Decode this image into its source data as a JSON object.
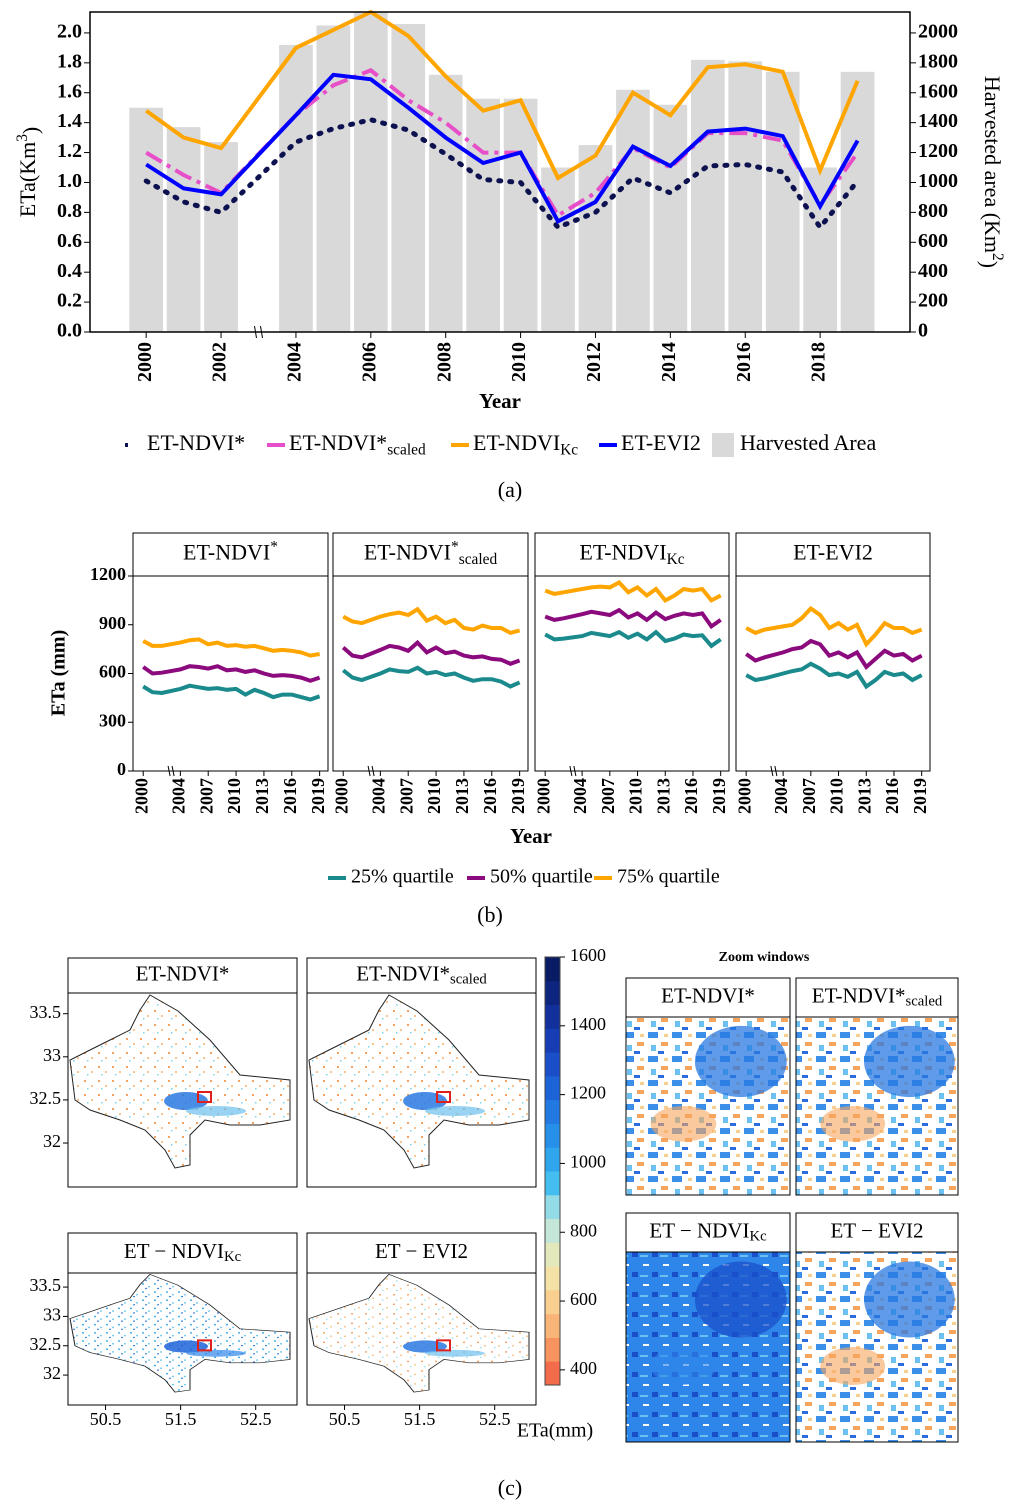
{
  "chart_data": [
    {
      "type": "bar-line",
      "x": [
        2000,
        2001,
        2002,
        2004,
        2005,
        2006,
        2007,
        2008,
        2009,
        2010,
        2011,
        2012,
        2013,
        2014,
        2015,
        2016,
        2017,
        2018,
        2019
      ],
      "xlim": [
        1998.5,
        2020.4
      ],
      "xticks": [
        2000,
        2002,
        2004,
        2006,
        2008,
        2010,
        2012,
        2014,
        2016,
        2018
      ],
      "axis_break_at": 2003,
      "xlabel": "Year",
      "ylabel": "ETa(Km",
      "ylabel_sup": "3",
      "ylabel_end": ")",
      "ylim": [
        0,
        2.14
      ],
      "yticks": [
        {
          "value": 0,
          "label": "0.0"
        },
        {
          "value": 0.2,
          "label": "0.2"
        },
        {
          "value": 0.4,
          "label": "0.4"
        },
        {
          "value": 0.6,
          "label": "0.6"
        },
        {
          "value": 0.8,
          "label": "0.8"
        },
        {
          "value": 1,
          "label": "1.0"
        },
        {
          "value": 1.2,
          "label": "1.2"
        },
        {
          "value": 1.4,
          "label": "1.4"
        },
        {
          "value": 1.6,
          "label": "1.6"
        },
        {
          "value": 1.8,
          "label": "1.8"
        },
        {
          "value": 2,
          "label": "2.0"
        }
      ],
      "y2label": "Harvested area (Km",
      "y2label_sup": "2",
      "y2label_end": ")",
      "y2lim": [
        0,
        2140
      ],
      "y2ticks": [
        0,
        200,
        400,
        600,
        800,
        1000,
        1200,
        1400,
        1600,
        1800,
        2000
      ],
      "legend": "bottom",
      "series": [
        {
          "name": "ET-NDVI*",
          "color": "#0d1150",
          "style": "dotted",
          "values": [
            1.01,
            0.87,
            0.8,
            1.27,
            1.36,
            1.42,
            1.35,
            1.19,
            1.02,
            1.0,
            0.7,
            0.8,
            1.03,
            0.93,
            1.11,
            1.12,
            1.07,
            0.7,
            1.01
          ]
        },
        {
          "name": "ET-NDVI*",
          "name_sub": "scaled",
          "color": "#e64fc8",
          "style": "dashdot",
          "values": [
            1.2,
            1.05,
            0.93,
            1.45,
            1.65,
            1.75,
            1.55,
            1.4,
            1.2,
            1.2,
            0.78,
            0.93,
            1.23,
            1.1,
            1.33,
            1.33,
            1.28,
            0.85,
            1.2
          ]
        },
        {
          "name": "ET-NDVI",
          "name_sub": "Kc",
          "color": "#ffa500",
          "style": "solid",
          "values": [
            1.48,
            1.3,
            1.23,
            1.9,
            2.02,
            2.14,
            1.98,
            1.71,
            1.48,
            1.55,
            1.03,
            1.18,
            1.6,
            1.45,
            1.77,
            1.79,
            1.74,
            1.08,
            1.68
          ]
        },
        {
          "name": "ET-EVI2",
          "color": "#0000ff",
          "style": "solid",
          "values": [
            1.12,
            0.96,
            0.92,
            1.45,
            1.72,
            1.69,
            1.5,
            1.3,
            1.13,
            1.2,
            0.74,
            0.87,
            1.24,
            1.11,
            1.34,
            1.36,
            1.31,
            0.84,
            1.28
          ]
        },
        {
          "name": "Harvested Area",
          "color": "#d9d9d9",
          "type": "bar",
          "axis": "y2",
          "values": [
            1500,
            1370,
            1270,
            1920,
            2050,
            2140,
            2060,
            1720,
            1560,
            1560,
            1100,
            1250,
            1620,
            1520,
            1820,
            1810,
            1740,
            1100,
            1740
          ]
        }
      ],
      "caption": "(a)"
    },
    {
      "type": "facet-line",
      "x": [
        2000,
        2001,
        2002,
        2004,
        2005,
        2006,
        2007,
        2008,
        2009,
        2010,
        2011,
        2012,
        2013,
        2014,
        2015,
        2016,
        2017,
        2018,
        2019
      ],
      "xlim": [
        1998.9,
        2019.9
      ],
      "xticks": [
        2000,
        2004,
        2007,
        2010,
        2013,
        2016,
        2019
      ],
      "axis_break_at": 2003,
      "xlabel": "Year",
      "ylabel": "ETa (mm)",
      "ylim": [
        0,
        1200
      ],
      "yticks": [
        0,
        300,
        600,
        900,
        1200
      ],
      "legend": "bottom",
      "series": [
        {
          "name": "25% quartile",
          "color": "#1b8a8c"
        },
        {
          "name": "50% quartile",
          "color": "#8b0a7d"
        },
        {
          "name": "75% quartile",
          "color": "#ffa500"
        }
      ],
      "facets": [
        {
          "title": "ET-NDVI",
          "title_sup": "*",
          "values": [
            [
              520,
              485,
              480,
              505,
              525,
              515,
              505,
              510,
              500,
              505,
              470,
              500,
              480,
              455,
              470,
              470,
              455,
              440,
              460
            ],
            [
              640,
              600,
              605,
              625,
              645,
              640,
              630,
              645,
              620,
              625,
              610,
              620,
              600,
              585,
              590,
              585,
              575,
              555,
              575
            ],
            [
              800,
              770,
              770,
              790,
              805,
              810,
              780,
              790,
              770,
              775,
              765,
              770,
              755,
              740,
              745,
              740,
              730,
              710,
              720
            ]
          ]
        },
        {
          "title": "ET-NDVI",
          "title_sup": "*",
          "title_sub": "scaled",
          "values": [
            [
              620,
              575,
              560,
              600,
              625,
              615,
              610,
              635,
              600,
              610,
              590,
              600,
              575,
              555,
              565,
              565,
              550,
              520,
              545
            ],
            [
              760,
              710,
              700,
              745,
              770,
              760,
              740,
              790,
              730,
              760,
              725,
              735,
              710,
              700,
              705,
              690,
              685,
              660,
              680
            ],
            [
              950,
              920,
              910,
              950,
              965,
              975,
              960,
              995,
              925,
              950,
              910,
              930,
              880,
              870,
              895,
              880,
              880,
              850,
              865
            ]
          ]
        },
        {
          "title": "ET-NDVI",
          "title_sub": "Kc",
          "values": [
            [
              840,
              810,
              815,
              830,
              850,
              840,
              830,
              855,
              820,
              845,
              810,
              855,
              800,
              815,
              840,
              830,
              835,
              770,
              810
            ],
            [
              950,
              930,
              940,
              965,
              980,
              970,
              960,
              990,
              945,
              970,
              930,
              975,
              935,
              955,
              970,
              960,
              970,
              890,
              930
            ],
            [
              1110,
              1090,
              1100,
              1120,
              1130,
              1135,
              1130,
              1160,
              1100,
              1130,
              1080,
              1120,
              1050,
              1080,
              1120,
              1110,
              1120,
              1050,
              1080
            ]
          ]
        },
        {
          "title": "ET-EVI2",
          "values": [
            [
              590,
              560,
              570,
              600,
              615,
              625,
              660,
              630,
              590,
              600,
              580,
              610,
              520,
              560,
              610,
              590,
              600,
              560,
              590
            ],
            [
              720,
              680,
              700,
              730,
              750,
              760,
              800,
              780,
              710,
              730,
              700,
              730,
              640,
              690,
              740,
              710,
              720,
              680,
              710
            ],
            [
              880,
              850,
              870,
              890,
              900,
              940,
              1000,
              960,
              880,
              910,
              870,
              900,
              780,
              840,
              910,
              880,
              880,
              850,
              870
            ]
          ]
        }
      ],
      "caption": "(b)"
    },
    {
      "type": "map",
      "xlim": [
        50.0,
        53.05
      ],
      "xticks": [
        50.5,
        51.5,
        52.5
      ],
      "ylim": [
        31.49,
        33.74
      ],
      "yticks": [
        32,
        32.5,
        33,
        33.5
      ],
      "facets": [
        {
          "title": "ET-NDVI*"
        },
        {
          "title": "ET-NDVI*",
          "title_sub": "scaled"
        },
        {
          "title": "ET − NDVI",
          "title_sub": "Kc"
        },
        {
          "title": "ET − EVI2"
        }
      ],
      "colorbar": {
        "label": "ETa(mm)",
        "lim": [
          356,
          1600
        ],
        "ticks": [
          400,
          600,
          800,
          1000,
          1200,
          1400,
          1600
        ],
        "colors": [
          "#f26b4a",
          "#f7935e",
          "#f9b577",
          "#f9cf8f",
          "#f3e1a6",
          "#e4e8bd",
          "#c3e6d8",
          "#93dbe6",
          "#44bdf0",
          "#2fa5ee",
          "#268fe9",
          "#2279e2",
          "#1d63d8",
          "#1a4fc9",
          "#163db4",
          "#12309c",
          "#0e2580",
          "#0a1b66"
        ]
      },
      "zoom": {
        "title": "Zoom windows",
        "facets": [
          {
            "title": "ET-NDVI*"
          },
          {
            "title": "ET-NDVI*",
            "title_sub": "scaled"
          },
          {
            "title": "ET − NDVI",
            "title_sub": "Kc"
          },
          {
            "title": "ET − EVI2"
          }
        ]
      },
      "caption": "(c)"
    }
  ]
}
